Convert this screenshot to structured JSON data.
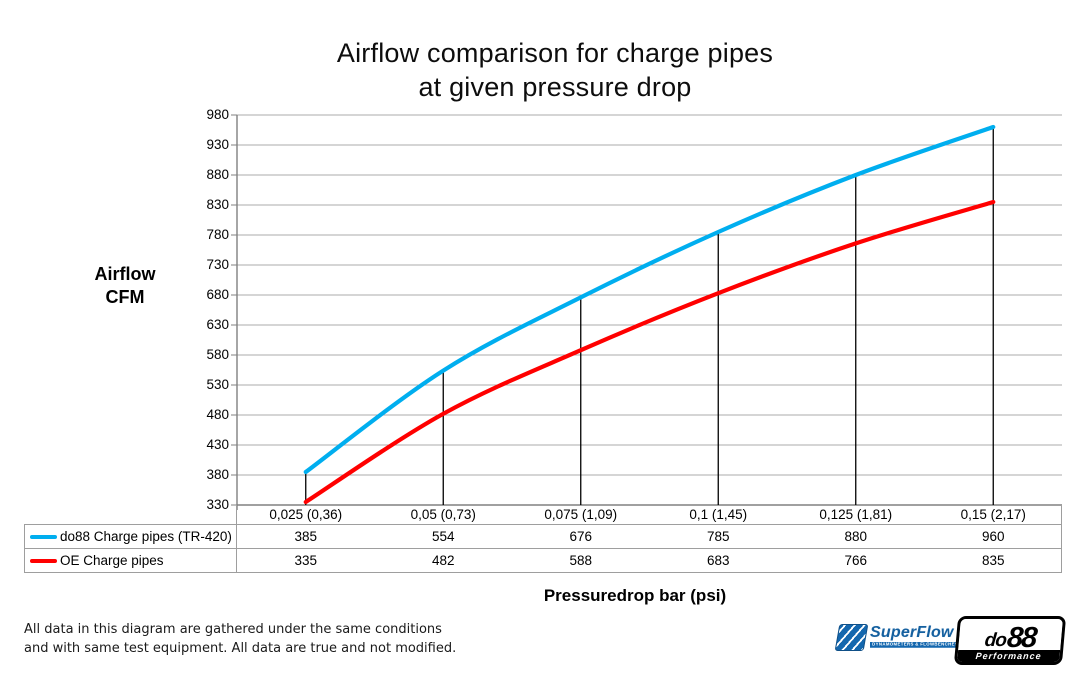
{
  "title": {
    "line1": "Airflow comparison for charge pipes",
    "line2": "at given pressure drop"
  },
  "y_axis_label": {
    "line1": "Airflow",
    "line2": "CFM"
  },
  "x_axis_label": "Pressuredrop bar (psi)",
  "footer_note": {
    "line1": "All data in this diagram are gathered under the same conditions",
    "line2": "and with same test equipment. All data are true and not modified."
  },
  "logos": {
    "superflow": {
      "name": "SuperFlow",
      "tagline": "DYNAMOMETERS & FLOWBENCHES"
    },
    "do88": {
      "prefix": "do",
      "suffix": "88",
      "tagline": "Performance"
    }
  },
  "chart_data": {
    "type": "line",
    "title": "Airflow comparison for charge pipes at given pressure drop",
    "xlabel": "Pressuredrop bar (psi)",
    "ylabel": "Airflow CFM",
    "categories": [
      "0,025 (0,36)",
      "0,05 (0,73)",
      "0,075 (1,09)",
      "0,1 (1,45)",
      "0,125 (1,81)",
      "0,15 (2,17)"
    ],
    "series": [
      {
        "name": "do88 Charge pipes (TR-420)",
        "color": "#00AEEF",
        "values": [
          385,
          554,
          676,
          785,
          880,
          960
        ]
      },
      {
        "name": "OE Charge pipes",
        "color": "#FF0000",
        "values": [
          335,
          482,
          588,
          683,
          766,
          835
        ]
      }
    ],
    "ylim": [
      330,
      980
    ],
    "y_step": 50,
    "y_ticks": [
      980,
      930,
      880,
      830,
      780,
      730,
      680,
      630,
      580,
      530,
      480,
      430,
      380,
      330
    ],
    "grid": true,
    "drop_lines": true,
    "smooth": true,
    "legend_position": "table-left",
    "colors": {
      "gridline": "#ABABAB",
      "axis": "#808080",
      "drop_line": "#000000",
      "table_border": "#9E9E9E"
    }
  }
}
